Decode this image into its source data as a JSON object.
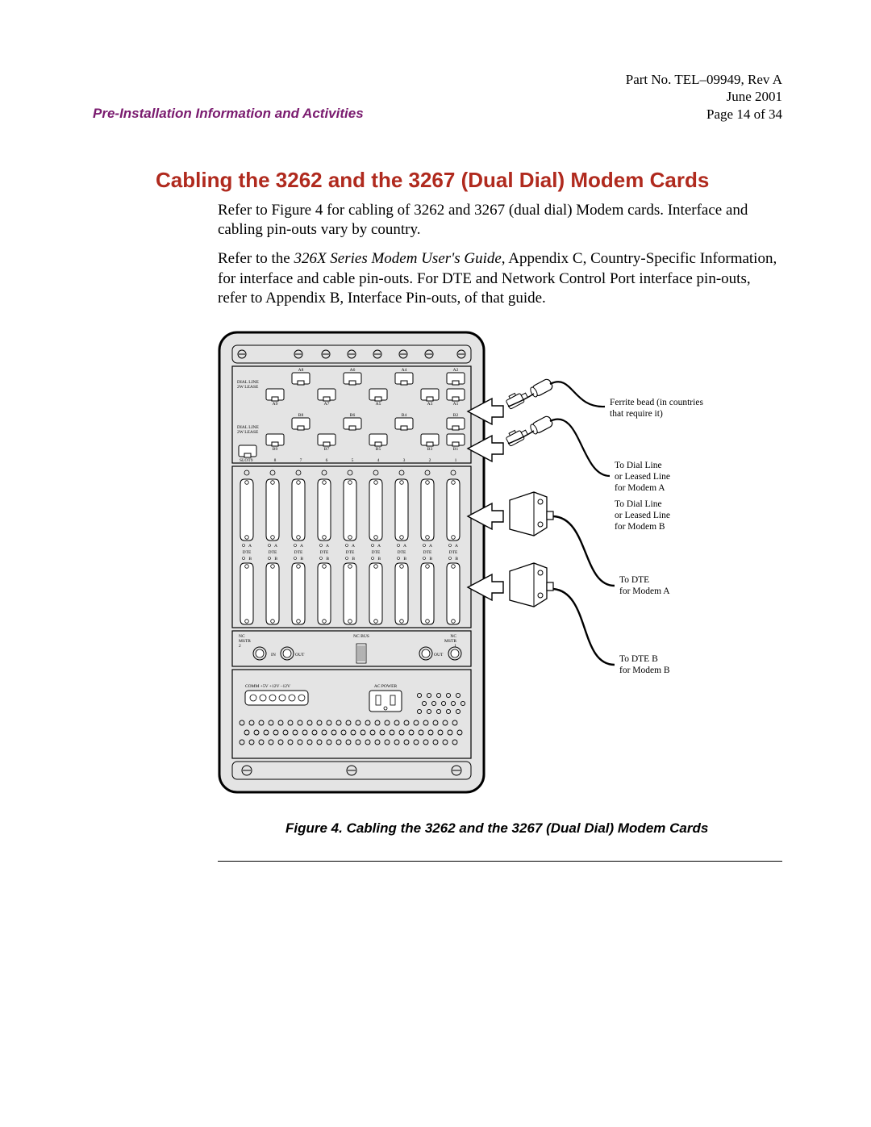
{
  "header": {
    "section": "Pre-Installation Information and Activities",
    "partno": "Part No. TEL–09949, Rev A",
    "date": "June 2001",
    "page": "Page 14 of 34"
  },
  "title": "Cabling the 3262 and the 3267 (Dual Dial) Modem Cards",
  "para1_a": "Refer to Figure 4 for cabling of 3262 and 3267 (dual dial) Modem cards. Interface and cabling pin-outs vary by country.",
  "para2_a": "Refer to the ",
  "para2_em": "326X Series Modem User's Guide",
  "para2_b": ", Appendix C, Country-Specific Information, for interface and cable pin-outs. For DTE and Network Control Port interface pin-outs, refer to Appendix B, Interface Pin-outs, of that guide.",
  "caption": "Figure 4.   Cabling the 3262 and the 3267 (Dual Dial) Modem Cards",
  "fig": {
    "rowA_top": [
      "A8",
      "A6",
      "A4",
      "A2"
    ],
    "rowA_bot": [
      "A9",
      "A7",
      "A5",
      "A3",
      "A1"
    ],
    "rowB_top": [
      "B8",
      "B6",
      "B4",
      "B2"
    ],
    "rowB_bot": [
      "B9",
      "B7",
      "B5",
      "B3",
      "B1"
    ],
    "slot9": "SLOT9",
    "slot_nums": [
      "8",
      "7",
      "6",
      "5",
      "4",
      "3",
      "2",
      "1"
    ],
    "dte_label": "DTE",
    "dial_line_a": "DIAL LINE",
    "dial_line_b": "2W LEASE",
    "nc_mstr_left": "NC\nMSTR\n2",
    "nc_bus": "NC BUS",
    "nc_mstr_right": "NC\nMSTR\n1",
    "in": "IN",
    "out": "OUT",
    "comm": "COMM +5V +12V –12V",
    "ac": "AC POWER",
    "callouts": {
      "ferrite_a": "Ferrite bead (in countries",
      "ferrite_b": "that require it)",
      "dlA_a": "To Dial Line",
      "dlA_b": "or Leased Line",
      "dlA_c": "for Modem A",
      "dlB_a": "To Dial Line",
      "dlB_b": "or Leased Line",
      "dlB_c": "for Modem B",
      "dteA_a": "To DTE",
      "dteA_b": "for Modem A",
      "dteB_a": "To DTE B",
      "dteB_b": "for Modem B"
    },
    "colors": {
      "panel_fill": "#e4e4e4",
      "panel_stroke": "#000000",
      "port_fill": "#ffffff",
      "callout_stroke": "#000000"
    }
  }
}
